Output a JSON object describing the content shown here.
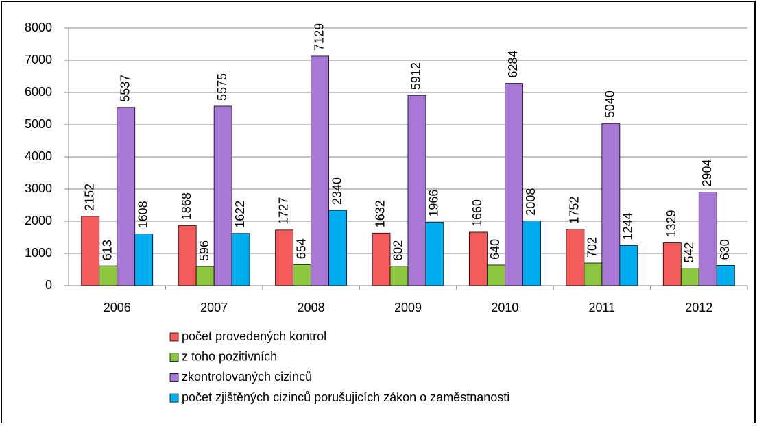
{
  "chart_data": {
    "type": "bar",
    "categories": [
      "2006",
      "2007",
      "2008",
      "2009",
      "2010",
      "2011",
      "2012"
    ],
    "series": [
      {
        "name": "počet provedených kontrol",
        "color": "#f55b5b",
        "values": [
          2152,
          1868,
          1727,
          1632,
          1660,
          1752,
          1329
        ]
      },
      {
        "name": "z toho pozitivních",
        "color": "#8dc63f",
        "values": [
          613,
          596,
          654,
          602,
          640,
          702,
          542
        ]
      },
      {
        "name": "zkontrolovaných cizinců",
        "color": "#a878d6",
        "values": [
          5537,
          5575,
          7129,
          5912,
          6284,
          5040,
          2904
        ]
      },
      {
        "name": "počet zjištěných cizinců porušujicích zákon o zaměstnanosti",
        "color": "#00aeef",
        "values": [
          1608,
          1622,
          2340,
          1966,
          2008,
          1244,
          630
        ]
      }
    ],
    "ylim": [
      0,
      8000
    ],
    "yticks": [
      0,
      1000,
      2000,
      3000,
      4000,
      5000,
      6000,
      7000,
      8000
    ],
    "grid": true,
    "legend": "bottom"
  }
}
